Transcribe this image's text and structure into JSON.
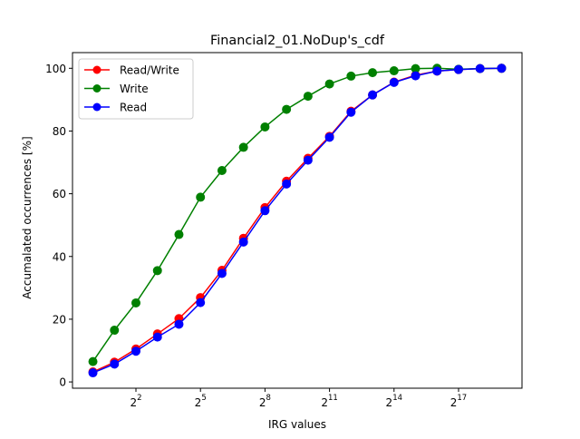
{
  "chart_data": {
    "type": "line",
    "title": "Financial2_01.NoDup's_cdf",
    "xlabel": "IRG values",
    "ylabel": "Accumalated occurrences [%]",
    "x_scale": "log2",
    "x_exponents": [
      0,
      1,
      2,
      3,
      4,
      5,
      6,
      7,
      8,
      9,
      10,
      11,
      12,
      13,
      14,
      15,
      16,
      17,
      18,
      19
    ],
    "xlim_exponent": [
      -0.95,
      19.95
    ],
    "ylim": [
      -2,
      105
    ],
    "x_ticks": [
      {
        "exponent": 2,
        "base": "2",
        "power": "2"
      },
      {
        "exponent": 5,
        "base": "2",
        "power": "5"
      },
      {
        "exponent": 8,
        "base": "2",
        "power": "8"
      },
      {
        "exponent": 11,
        "base": "2",
        "power": "11"
      },
      {
        "exponent": 14,
        "base": "2",
        "power": "14"
      },
      {
        "exponent": 17,
        "base": "2",
        "power": "17"
      }
    ],
    "y_ticks": [
      0,
      20,
      40,
      60,
      80,
      100
    ],
    "grid": false,
    "legend": "top-left",
    "series": [
      {
        "name": "Read/Write",
        "color": "#ff0000",
        "values": [
          3.2,
          6.3,
          10.5,
          15.3,
          20.2,
          26.9,
          35.6,
          45.8,
          55.6,
          64.0,
          71.3,
          78.3,
          86.3,
          91.5,
          95.6,
          97.8,
          99.1,
          99.6,
          99.9,
          100.0
        ]
      },
      {
        "name": "Write",
        "color": "#008000",
        "values": [
          6.5,
          16.5,
          25.2,
          35.5,
          47.0,
          58.9,
          67.4,
          74.8,
          81.3,
          86.9,
          91.1,
          95.0,
          97.5,
          98.6,
          99.2,
          99.9,
          100.0,
          99.7,
          99.9,
          100.0
        ]
      },
      {
        "name": "Read",
        "color": "#0000ff",
        "values": [
          2.9,
          5.7,
          9.8,
          14.3,
          18.4,
          25.3,
          34.6,
          44.6,
          54.6,
          63.1,
          70.7,
          78.0,
          86.0,
          91.5,
          95.5,
          97.6,
          99.1,
          99.6,
          99.9,
          100.0
        ]
      }
    ]
  }
}
